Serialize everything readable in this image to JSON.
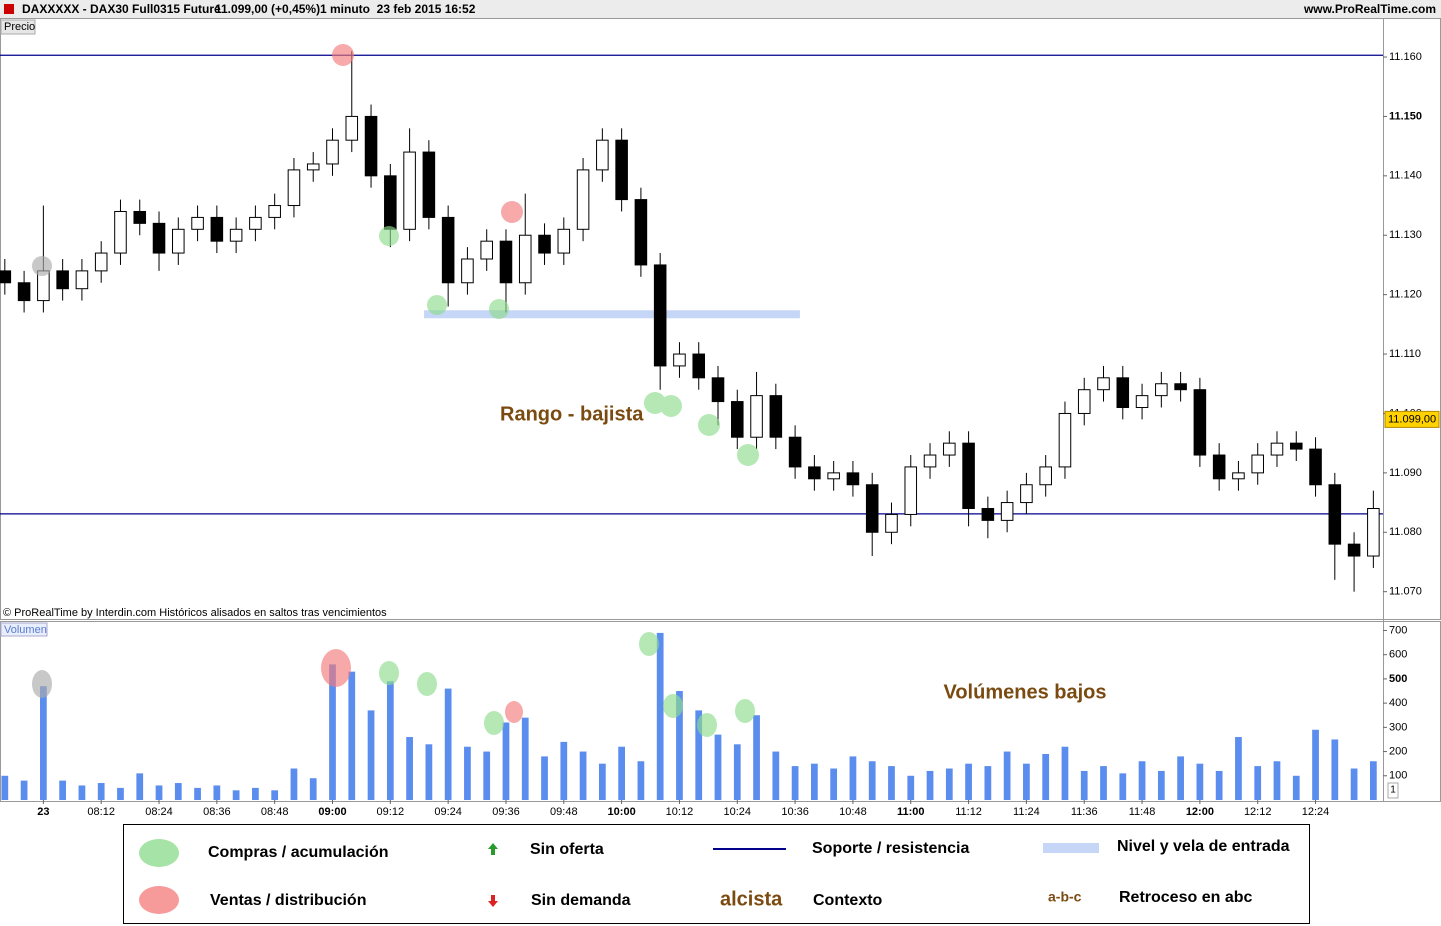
{
  "header": {
    "symbol": "DAXXXXX - DAX30 Full0315 Future",
    "price": "11.099,00 (+0,45%)",
    "period": "1 minuto  23 feb 2015 16:52",
    "site": "www.ProRealTime.com"
  },
  "chart_data": [
    {
      "type": "candlestick",
      "panel_label": "Precio",
      "source_note": "© ProRealTime by Interdin.com  Históricos alisados en saltos tras vencimientos",
      "x": [
        472,
        476,
        480,
        484,
        488,
        492,
        496,
        500,
        504,
        508,
        512,
        516,
        520,
        524,
        528,
        532,
        536,
        540,
        544,
        548,
        552,
        556,
        560,
        564,
        568,
        572,
        576,
        580,
        584,
        588,
        592,
        596,
        600,
        604,
        608,
        612,
        616,
        620,
        624,
        628,
        632,
        636,
        640,
        644,
        648,
        652,
        656,
        660,
        664,
        668,
        672,
        676,
        680,
        684,
        688,
        692,
        696,
        700,
        704,
        708,
        712,
        716,
        720,
        724,
        728,
        732,
        736,
        740,
        744,
        748,
        752,
        756
      ],
      "open": [
        11124,
        11122,
        11119,
        11124,
        11121,
        11124,
        11127,
        11134,
        11132,
        11127,
        11131,
        11133,
        11129,
        11131,
        11133,
        11135,
        11141,
        11142,
        11146,
        11150,
        11140,
        11131,
        11144,
        11133,
        11122,
        11126,
        11129,
        11122,
        11130,
        11127,
        11131,
        11141,
        11146,
        11136,
        11125,
        11108,
        11110,
        11106,
        11102,
        11096,
        11103,
        11096,
        11091,
        11089,
        11090,
        11088,
        11080,
        11083,
        11091,
        11093,
        11095,
        11084,
        11082,
        11085,
        11088,
        11091,
        11100,
        11104,
        11106,
        11101,
        11103,
        11105,
        11104,
        11093,
        11089,
        11090,
        11093,
        11095,
        11094,
        11088,
        11078,
        11076
      ],
      "high": [
        11126,
        11124,
        11135,
        11126,
        11126,
        11129,
        11136,
        11136,
        11134,
        11133,
        11135,
        11135,
        11133,
        11135,
        11137,
        11143,
        11144,
        11148,
        11161,
        11152,
        11142,
        11148,
        11146,
        11135,
        11128,
        11131,
        11131,
        11137,
        11132,
        11133,
        11143,
        11148,
        11148,
        11138,
        11127,
        11112,
        11112,
        11108,
        11104,
        11107,
        11105,
        11098,
        11093,
        11092,
        11092,
        11090,
        11085,
        11093,
        11095,
        11097,
        11097,
        11086,
        11087,
        11090,
        11093,
        11102,
        11106,
        11108,
        11108,
        11105,
        11107,
        11107,
        11106,
        11095,
        11092,
        11095,
        11097,
        11097,
        11096,
        11090,
        11080,
        11087
      ],
      "low": [
        11120,
        11117,
        11117,
        11119,
        11119,
        11122,
        11125,
        11130,
        11124,
        11125,
        11129,
        11127,
        11127,
        11129,
        11131,
        11133,
        11139,
        11140,
        11144,
        11138,
        11128,
        11129,
        11131,
        11118,
        11120,
        11124,
        11117,
        11120,
        11125,
        11125,
        11129,
        11139,
        11134,
        11123,
        11104,
        11106,
        11104,
        11098,
        11094,
        11094,
        11094,
        11089,
        11087,
        11087,
        11086,
        11076,
        11078,
        11081,
        11089,
        11091,
        11081,
        11079,
        11080,
        11083,
        11086,
        11089,
        11098,
        11102,
        11099,
        11099,
        11101,
        11102,
        11091,
        11087,
        11087,
        11088,
        11091,
        11092,
        11086,
        11072,
        11070,
        11074
      ],
      "close": [
        11122,
        11119,
        11124,
        11121,
        11124,
        11127,
        11134,
        11132,
        11127,
        11131,
        11133,
        11129,
        11131,
        11133,
        11135,
        11141,
        11142,
        11146,
        11150,
        11140,
        11131,
        11144,
        11133,
        11122,
        11126,
        11129,
        11122,
        11130,
        11127,
        11131,
        11141,
        11146,
        11136,
        11125,
        11108,
        11110,
        11106,
        11102,
        11096,
        11103,
        11096,
        11091,
        11089,
        11090,
        11088,
        11080,
        11083,
        11091,
        11093,
        11095,
        11084,
        11082,
        11085,
        11088,
        11091,
        11100,
        11104,
        11106,
        11101,
        11103,
        11105,
        11104,
        11093,
        11089,
        11090,
        11093,
        11095,
        11094,
        11088,
        11078,
        11076,
        11084
      ],
      "up_color": "#ffffff",
      "down_color": "#000000",
      "xlim": [
        471,
        758
      ],
      "ylim": [
        11065.4,
        11166.4
      ],
      "yticks": [
        {
          "value": 11070,
          "label": "11.070"
        },
        {
          "value": 11080,
          "label": "11.080"
        },
        {
          "value": 11090,
          "label": "11.090"
        },
        {
          "value": 11100,
          "label": "11.100"
        },
        {
          "value": 11110,
          "label": "11.110"
        },
        {
          "value": 11120,
          "label": "11.120"
        },
        {
          "value": 11130,
          "label": "11.130"
        },
        {
          "value": 11140,
          "label": "11.140"
        },
        {
          "value": 11150,
          "label": "11.150",
          "bold": true
        },
        {
          "value": 11160,
          "label": "11.160"
        }
      ],
      "levels": [
        11160.3,
        11083.1
      ],
      "level_color": "#00008b",
      "entry_level": 11116.7,
      "entry_x": [
        559,
        637
      ],
      "entry_color": "#c5d6f7",
      "last_price": {
        "value": 11099,
        "label": "11.099,00"
      },
      "annotation": "Rango - bajista"
    },
    {
      "type": "bar",
      "panel_label": "Volumen",
      "x": [
        472,
        476,
        480,
        484,
        488,
        492,
        496,
        500,
        504,
        508,
        512,
        516,
        520,
        524,
        528,
        532,
        536,
        540,
        544,
        548,
        552,
        556,
        560,
        564,
        568,
        572,
        576,
        580,
        584,
        588,
        592,
        596,
        600,
        604,
        608,
        612,
        616,
        620,
        624,
        628,
        632,
        636,
        640,
        644,
        648,
        652,
        656,
        660,
        664,
        668,
        672,
        676,
        680,
        684,
        688,
        692,
        696,
        700,
        704,
        708,
        712,
        716,
        720,
        724,
        728,
        732,
        736,
        740,
        744,
        748,
        752,
        756
      ],
      "values": [
        100,
        80,
        470,
        80,
        60,
        70,
        50,
        110,
        60,
        70,
        50,
        60,
        40,
        50,
        40,
        130,
        90,
        560,
        530,
        370,
        490,
        260,
        230,
        460,
        220,
        200,
        320,
        340,
        180,
        240,
        200,
        150,
        220,
        160,
        690,
        450,
        370,
        270,
        230,
        350,
        200,
        140,
        150,
        130,
        180,
        160,
        140,
        100,
        120,
        130,
        150,
        140,
        200,
        150,
        190,
        220,
        120,
        140,
        110,
        160,
        120,
        180,
        150,
        120,
        260,
        140,
        160,
        100,
        290,
        250,
        130,
        160
      ],
      "color": "#5b8def",
      "xlim": [
        471,
        758
      ],
      "ylim": [
        0,
        735
      ],
      "yticks": [
        100,
        200,
        300,
        400,
        {
          "value": 500,
          "label": "500",
          "bold": true
        },
        600,
        700
      ],
      "xticks": [
        {
          "value": 480,
          "label": "23",
          "bold": true
        },
        {
          "value": 492,
          "label": "08:12"
        },
        {
          "value": 504,
          "label": "08:24"
        },
        {
          "value": 516,
          "label": "08:36"
        },
        {
          "value": 528,
          "label": "08:48"
        },
        {
          "value": 540,
          "label": "09:00",
          "bold": true
        },
        {
          "value": 552,
          "label": "09:12"
        },
        {
          "value": 564,
          "label": "09:24"
        },
        {
          "value": 576,
          "label": "09:36"
        },
        {
          "value": 588,
          "label": "09:48"
        },
        {
          "value": 600,
          "label": "10:00",
          "bold": true
        },
        {
          "value": 612,
          "label": "10:12"
        },
        {
          "value": 624,
          "label": "10:24"
        },
        {
          "value": 636,
          "label": "10:36"
        },
        {
          "value": 648,
          "label": "10:48"
        },
        {
          "value": 660,
          "label": "11:00",
          "bold": true
        },
        {
          "value": 672,
          "label": "11:12"
        },
        {
          "value": 684,
          "label": "11:24"
        },
        {
          "value": 696,
          "label": "11:36"
        },
        {
          "value": 708,
          "label": "11:48"
        },
        {
          "value": 720,
          "label": "12:00",
          "bold": true
        },
        {
          "value": 732,
          "label": "12:12"
        },
        {
          "value": 744,
          "label": "12:24"
        }
      ],
      "scale_label": "1",
      "annotation": "Volúmenes bajos"
    }
  ],
  "legend": {
    "buy": "Compras / acumulación",
    "sell": "Ventas / distribución",
    "no_supply": "Sin oferta",
    "no_demand": "Sin demanda",
    "support": "Soporte / resistencia",
    "bull": "alcista",
    "context": "Contexto",
    "entry": "Nivel y vela de entrada",
    "abc": "a-b-c",
    "abc_text": "Retroceso en abc"
  }
}
